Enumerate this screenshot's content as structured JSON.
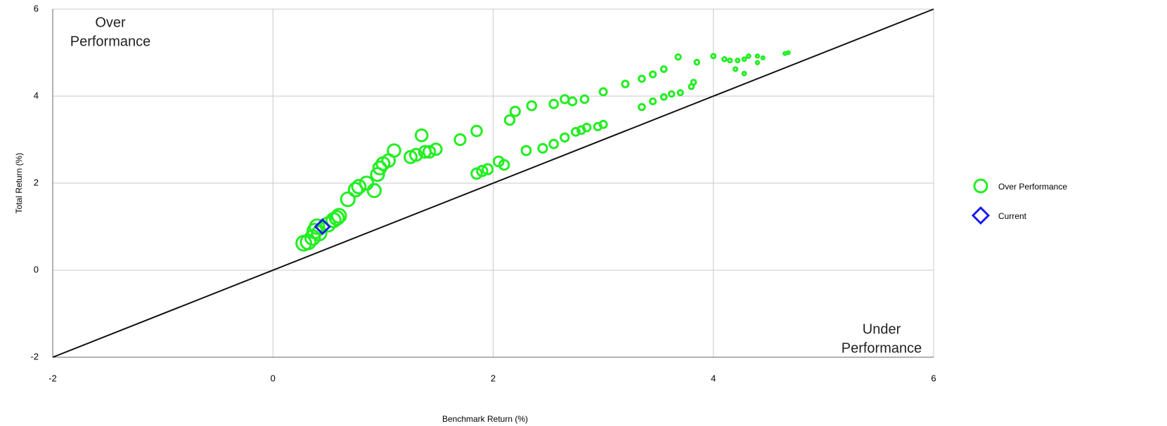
{
  "chart_data": {
    "type": "scatter",
    "x_label": "Benchmark Return (%)",
    "y_label": "Total Return (%)",
    "annotations": [
      {
        "lines": [
          "Over",
          "Performance"
        ]
      },
      {
        "lines": [
          "Under",
          "Performance"
        ]
      }
    ],
    "xlim": [
      -2,
      6
    ],
    "ylim": [
      -2,
      6
    ],
    "xticks": [
      -2,
      0,
      2,
      4,
      6
    ],
    "yticks": [
      -2,
      0,
      2,
      4,
      6
    ],
    "grid": true,
    "legend": "right",
    "series": [
      {
        "name": "Over Performance",
        "color": "#22ee22",
        "marker": "circle",
        "x": [
          0.28,
          0.32,
          0.36,
          0.38,
          0.4,
          0.42,
          0.5,
          0.55,
          0.58,
          0.6,
          0.68,
          0.75,
          0.78,
          0.85,
          0.92,
          0.95,
          0.97,
          1.0,
          1.05,
          1.1,
          1.25,
          1.3,
          1.35,
          1.38,
          1.42,
          1.48,
          1.7,
          1.85,
          2.15,
          2.2,
          2.35,
          2.55,
          2.65,
          2.72,
          2.83,
          3.0,
          3.2,
          3.35,
          3.45,
          3.55,
          3.68,
          3.85,
          4.0,
          4.1,
          4.15,
          4.22,
          4.28,
          4.32,
          4.4,
          4.45,
          4.4,
          4.28,
          4.2,
          4.65,
          4.68,
          1.85,
          1.9,
          1.95,
          2.05,
          2.1,
          2.3,
          2.45,
          2.55,
          2.65,
          2.75,
          2.8,
          2.85,
          2.95,
          3.0,
          3.35,
          3.45,
          3.55,
          3.62,
          3.7,
          3.8,
          3.82
        ],
        "values": [
          0.62,
          0.65,
          0.75,
          0.9,
          1.0,
          0.85,
          1.05,
          1.15,
          1.2,
          1.25,
          1.63,
          1.85,
          1.92,
          2.0,
          1.83,
          2.2,
          2.35,
          2.45,
          2.52,
          2.75,
          2.6,
          2.65,
          3.1,
          2.72,
          2.72,
          2.78,
          3.0,
          3.2,
          3.45,
          3.65,
          3.78,
          3.82,
          3.93,
          3.88,
          3.93,
          4.1,
          4.28,
          4.4,
          4.5,
          4.62,
          4.9,
          4.78,
          4.92,
          4.85,
          4.82,
          4.82,
          4.85,
          4.92,
          4.92,
          4.88,
          4.77,
          4.52,
          4.62,
          4.98,
          5.0,
          2.22,
          2.28,
          2.32,
          2.5,
          2.42,
          2.75,
          2.8,
          2.9,
          3.05,
          3.18,
          3.22,
          3.28,
          3.3,
          3.35,
          3.75,
          3.88,
          3.98,
          4.05,
          4.08,
          4.22,
          4.32
        ]
      },
      {
        "name": "Current",
        "color": "#1a1aee",
        "marker": "diamond",
        "x": [
          0.45
        ],
        "values": [
          1.0
        ]
      }
    ]
  }
}
